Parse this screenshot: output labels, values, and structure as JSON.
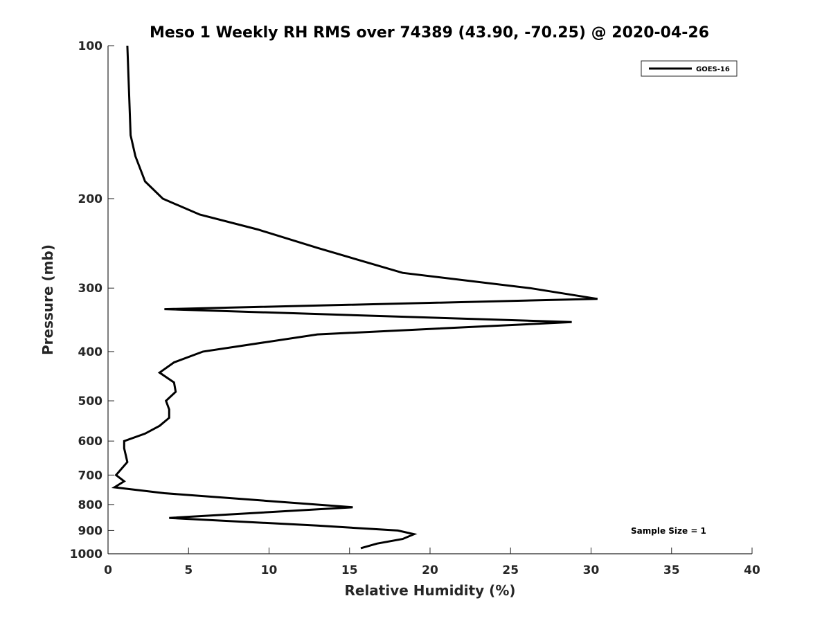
{
  "chart_data": {
    "type": "line",
    "title": "Meso 1 Weekly RH RMS over 74389 (43.90, -70.25) @ 2020-04-26",
    "xlabel": "Relative Humidity (%)",
    "ylabel": "Pressure (mb)",
    "xlim": [
      0,
      40
    ],
    "ylim": [
      100,
      1000
    ],
    "y_scale": "log",
    "y_reversed": true,
    "grid": false,
    "legend_placement": "top-right",
    "x_ticks": [
      "0",
      "5",
      "10",
      "15",
      "20",
      "25",
      "30",
      "35",
      "40"
    ],
    "y_ticks": [
      "100",
      "200",
      "300",
      "400",
      "500",
      "600",
      "700",
      "800",
      "900",
      "1000"
    ],
    "annotation": "Sample Size = 1",
    "series": [
      {
        "name": "GOES-16",
        "color": "#000000",
        "points": [
          {
            "x": 1.2,
            "p": 100
          },
          {
            "x": 1.4,
            "p": 150
          },
          {
            "x": 1.7,
            "p": 165
          },
          {
            "x": 2.3,
            "p": 185
          },
          {
            "x": 3.4,
            "p": 200
          },
          {
            "x": 5.7,
            "p": 215
          },
          {
            "x": 9.3,
            "p": 230
          },
          {
            "x": 13.0,
            "p": 250
          },
          {
            "x": 18.3,
            "p": 280
          },
          {
            "x": 26.2,
            "p": 300
          },
          {
            "x": 30.4,
            "p": 315
          },
          {
            "x": 3.5,
            "p": 330
          },
          {
            "x": 28.8,
            "p": 350
          },
          {
            "x": 13.0,
            "p": 370
          },
          {
            "x": 5.9,
            "p": 400
          },
          {
            "x": 4.1,
            "p": 420
          },
          {
            "x": 3.2,
            "p": 440
          },
          {
            "x": 4.1,
            "p": 460
          },
          {
            "x": 4.2,
            "p": 480
          },
          {
            "x": 3.6,
            "p": 500
          },
          {
            "x": 3.8,
            "p": 520
          },
          {
            "x": 3.8,
            "p": 540
          },
          {
            "x": 3.2,
            "p": 560
          },
          {
            "x": 2.3,
            "p": 580
          },
          {
            "x": 1.0,
            "p": 600
          },
          {
            "x": 1.0,
            "p": 620
          },
          {
            "x": 1.2,
            "p": 660
          },
          {
            "x": 0.5,
            "p": 700
          },
          {
            "x": 1.0,
            "p": 720
          },
          {
            "x": 0.4,
            "p": 740
          },
          {
            "x": 3.5,
            "p": 760
          },
          {
            "x": 15.2,
            "p": 810
          },
          {
            "x": 3.8,
            "p": 850
          },
          {
            "x": 13.0,
            "p": 880
          },
          {
            "x": 18.0,
            "p": 900
          },
          {
            "x": 19.0,
            "p": 915
          },
          {
            "x": 18.3,
            "p": 935
          },
          {
            "x": 16.7,
            "p": 955
          },
          {
            "x": 15.7,
            "p": 975
          }
        ]
      }
    ]
  }
}
